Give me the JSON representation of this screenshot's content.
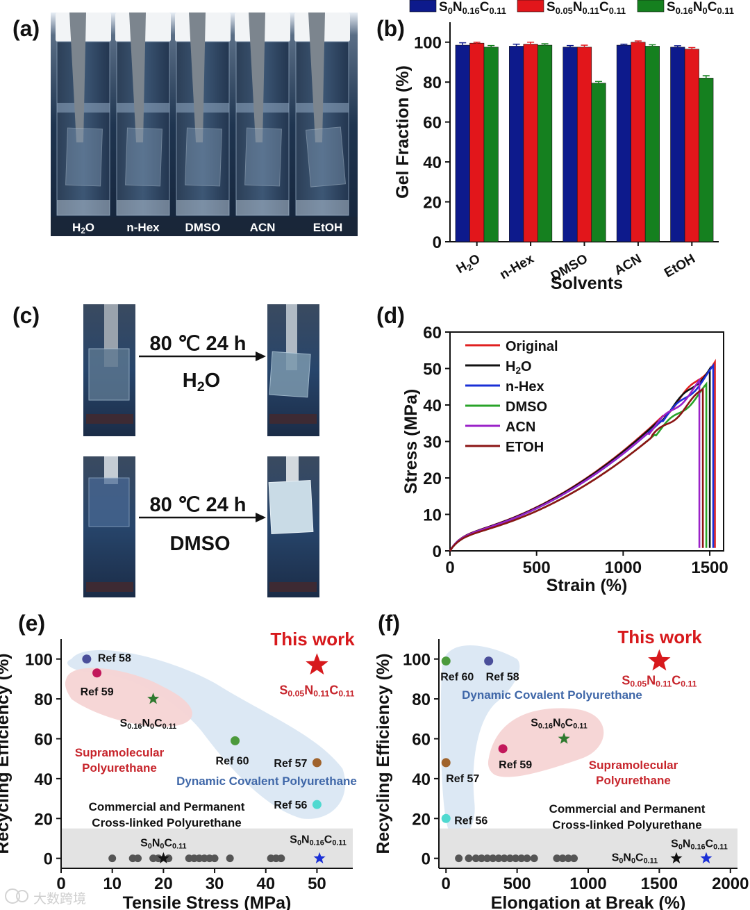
{
  "panel_labels": {
    "a": "(a)",
    "b": "(b)",
    "c": "(c)",
    "d": "(d)",
    "e": "(e)",
    "f": "(f)"
  },
  "panel_a": {
    "vial_labels": [
      "H2O",
      "n-Hex",
      "DMSO",
      "ACN",
      "EtOH"
    ]
  },
  "panel_c": {
    "condition": "80 ℃ 24 h",
    "solvent_top": "H2O",
    "solvent_bottom": "DMSO"
  },
  "watermark": "大数跨境",
  "colors": {
    "blue": "#0d1a8c",
    "red": "#e2161b",
    "green": "#15801f",
    "original": "#e02020",
    "h2o": "#111111",
    "nhex": "#1a2fd6",
    "dmso": "#29a329",
    "acn": "#9a22c8",
    "etoh": "#8b1414",
    "this_work": "#d7191c",
    "blue_region": "#d6e4f2",
    "pink_region": "#f6d4d4",
    "gray_region": "#e3e3e3",
    "blue_text": "#3f67a8",
    "red_text": "#c7252c"
  },
  "chart_data": [
    {
      "id": "b",
      "type": "bar",
      "categories": [
        "H2O",
        "n-Hex",
        "DMSO",
        "ACN",
        "EtOH"
      ],
      "xlabel": "Solvents",
      "ylabel": "Gel Fraction (%)",
      "ylim": [
        0,
        110
      ],
      "yticks": [
        0,
        20,
        40,
        60,
        80,
        100
      ],
      "legend_position": "top",
      "series": [
        {
          "name": "S0N0.16C0.11",
          "values": [
            98.5,
            98,
            97.5,
            98.5,
            97.5
          ],
          "errors": [
            1.2,
            1.0,
            0.8,
            0.5,
            0.7
          ]
        },
        {
          "name": "S0.05N0.11C0.11",
          "values": [
            99.5,
            99,
            97.5,
            100,
            96.5
          ],
          "errors": [
            0.5,
            1.0,
            1.0,
            0.6,
            0.8
          ]
        },
        {
          "name": "S0.16N0C0.11",
          "values": [
            97.5,
            98.5,
            79.5,
            98,
            82
          ],
          "errors": [
            0.8,
            0.7,
            0.8,
            0.7,
            1.2
          ]
        }
      ]
    },
    {
      "id": "d",
      "type": "line",
      "xlabel": "Strain (%)",
      "ylabel": "Stress (MPa)",
      "xlim": [
        0,
        1580
      ],
      "ylim": [
        0,
        60
      ],
      "xticks": [
        0,
        500,
        1000,
        1500
      ],
      "yticks": [
        0,
        10,
        20,
        30,
        40,
        50,
        60
      ],
      "legend_position": "top-left",
      "series": [
        {
          "name": "Original",
          "break_strain": 1530,
          "break_stress": 52
        },
        {
          "name": "H2O",
          "break_strain": 1500,
          "break_stress": 50
        },
        {
          "name": "n-Hex",
          "break_strain": 1520,
          "break_stress": 50
        },
        {
          "name": "DMSO",
          "break_strain": 1480,
          "break_stress": 45
        },
        {
          "name": "ACN",
          "break_strain": 1440,
          "break_stress": 46
        },
        {
          "name": "ETOH",
          "break_strain": 1460,
          "break_stress": 44
        }
      ]
    },
    {
      "id": "e",
      "type": "scatter",
      "xlabel": "Tensile Stress (MPa)",
      "ylabel": "Recycling Efficiency (%)",
      "xlim": [
        0,
        57
      ],
      "ylim": [
        -5,
        110
      ],
      "xticks": [
        0,
        10,
        20,
        30,
        40,
        50
      ],
      "yticks": [
        0,
        20,
        40,
        60,
        80,
        100
      ],
      "points": [
        {
          "label": "Ref 58",
          "x": 5,
          "y": 100,
          "color": "#4b4f9a",
          "marker": "circle"
        },
        {
          "label": "Ref 59",
          "x": 7,
          "y": 93,
          "color": "#c2185b",
          "marker": "circle"
        },
        {
          "label": "S0.16N0C0.11",
          "x": 18,
          "y": 80,
          "color": "#2f7a2f",
          "marker": "star"
        },
        {
          "label": "Ref 60",
          "x": 34,
          "y": 59,
          "color": "#4c9a3c",
          "marker": "circle"
        },
        {
          "label": "Ref 57",
          "x": 50,
          "y": 48,
          "color": "#a0632c",
          "marker": "circle"
        },
        {
          "label": "Ref 56",
          "x": 50,
          "y": 27,
          "color": "#4fd9d0",
          "marker": "circle"
        },
        {
          "label": "S0.05N0.11C0.11",
          "x": 50,
          "y": 97,
          "color": "#d7191c",
          "marker": "big-star"
        },
        {
          "label": "S0N0C0.11",
          "x": 20,
          "y": 0,
          "color": "#111111",
          "marker": "star"
        },
        {
          "label": "S0N0.16C0.11",
          "x": 50.5,
          "y": 0,
          "color": "#1a2fd6",
          "marker": "star"
        }
      ],
      "commercial_x": [
        10,
        14,
        15,
        18,
        19,
        21,
        25,
        26,
        27,
        28,
        29,
        30,
        33,
        41,
        42,
        43
      ],
      "texts": {
        "this_work": "This work",
        "supramolecular": [
          "Supramolecular",
          "Polyurethane"
        ],
        "dynamic": "Dynamic Covalent Polyurethane",
        "commercial": [
          "Commercial and Permanent",
          "Cross-linked Polyurethane"
        ]
      }
    },
    {
      "id": "f",
      "type": "scatter",
      "xlabel": "Elongation at Break (%)",
      "ylabel": "Recycling Efficiency (%)",
      "xlim": [
        -50,
        2050
      ],
      "ylim": [
        -5,
        110
      ],
      "xticks": [
        0,
        500,
        1000,
        1500,
        2000
      ],
      "yticks": [
        0,
        20,
        40,
        60,
        80,
        100
      ],
      "points": [
        {
          "label": "Ref 60",
          "x": 0,
          "y": 99,
          "color": "#4c9a3c",
          "marker": "circle"
        },
        {
          "label": "Ref 58",
          "x": 300,
          "y": 99,
          "color": "#4b4f9a",
          "marker": "circle"
        },
        {
          "label": "S0.16N0C0.11",
          "x": 830,
          "y": 60,
          "color": "#2f7a2f",
          "marker": "star"
        },
        {
          "label": "Ref 59",
          "x": 400,
          "y": 55,
          "color": "#c2185b",
          "marker": "circle"
        },
        {
          "label": "Ref 57",
          "x": 0,
          "y": 48,
          "color": "#a0632c",
          "marker": "circle"
        },
        {
          "label": "Ref 56",
          "x": 0,
          "y": 20,
          "color": "#4fd9d0",
          "marker": "circle"
        },
        {
          "label": "S0.05N0.11C0.11",
          "x": 1500,
          "y": 99,
          "color": "#d7191c",
          "marker": "big-star"
        },
        {
          "label": "S0N0C0.11",
          "x": 1620,
          "y": 0,
          "color": "#111111",
          "marker": "star"
        },
        {
          "label": "S0N0.16C0.11",
          "x": 1830,
          "y": 0,
          "color": "#1a2fd6",
          "marker": "star"
        }
      ],
      "commercial_x": [
        90,
        160,
        210,
        250,
        290,
        330,
        370,
        410,
        450,
        490,
        530,
        570,
        620,
        780,
        820,
        860,
        900
      ],
      "texts": {
        "this_work": "This work",
        "supramolecular": [
          "Supramolecular",
          "Polyurethane"
        ],
        "dynamic": "Dynamic Covalent Polyurethane",
        "commercial": [
          "Commercial and Permanent",
          "Cross-linked Polyurethane"
        ]
      }
    }
  ]
}
